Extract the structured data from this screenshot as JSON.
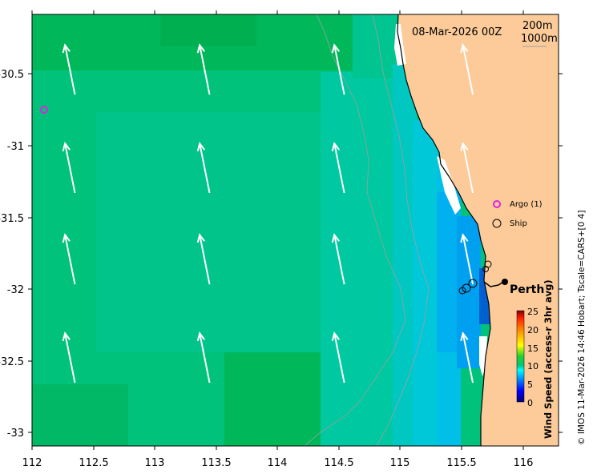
{
  "map": {
    "date_label": "08-Mar-2026 00Z",
    "contour_legend": [
      "200m",
      "1000m"
    ],
    "x_ticks": [
      "112",
      "112.5",
      "113",
      "113.5",
      "114",
      "114.5",
      "115",
      "115.5",
      "116"
    ],
    "y_ticks": [
      "-30.5",
      "-31",
      "-31.5",
      "-32",
      "-32.5",
      "-33"
    ],
    "city_label": "Perth",
    "legend": {
      "argo_label": "Argo (1)",
      "ship_label": "Ship"
    },
    "colorbar": {
      "title": "Wind Speed (access-r 3hr avg)",
      "ticks": [
        "25",
        "20",
        "15",
        "10",
        "5",
        "0"
      ],
      "range": [
        0,
        25
      ]
    },
    "credit": "© IMOS 11-Mar-2026 14:46 Hobart; Tscale=CARS+[0 4]",
    "colors": {
      "land": "#fccb99",
      "sea_green_dark": "#00b85a",
      "sea_green": "#00c27a",
      "sea_teal": "#00c8a0",
      "sea_cyan": "#00c8d8",
      "sea_light_blue": "#00a8f0",
      "sea_blue": "#0070e0",
      "argo": "#e020e0"
    },
    "extent": {
      "lon": [
        112,
        116.3
      ],
      "lat": [
        -33.1,
        -30.03
      ]
    },
    "arrows": {
      "lons": [
        112.35,
        113.45,
        114.55,
        115.6
      ],
      "lats": [
        -30.6,
        -31.3,
        -31.95,
        -32.65
      ],
      "u_ms": -1.3,
      "v_ms": 6.5
    }
  }
}
